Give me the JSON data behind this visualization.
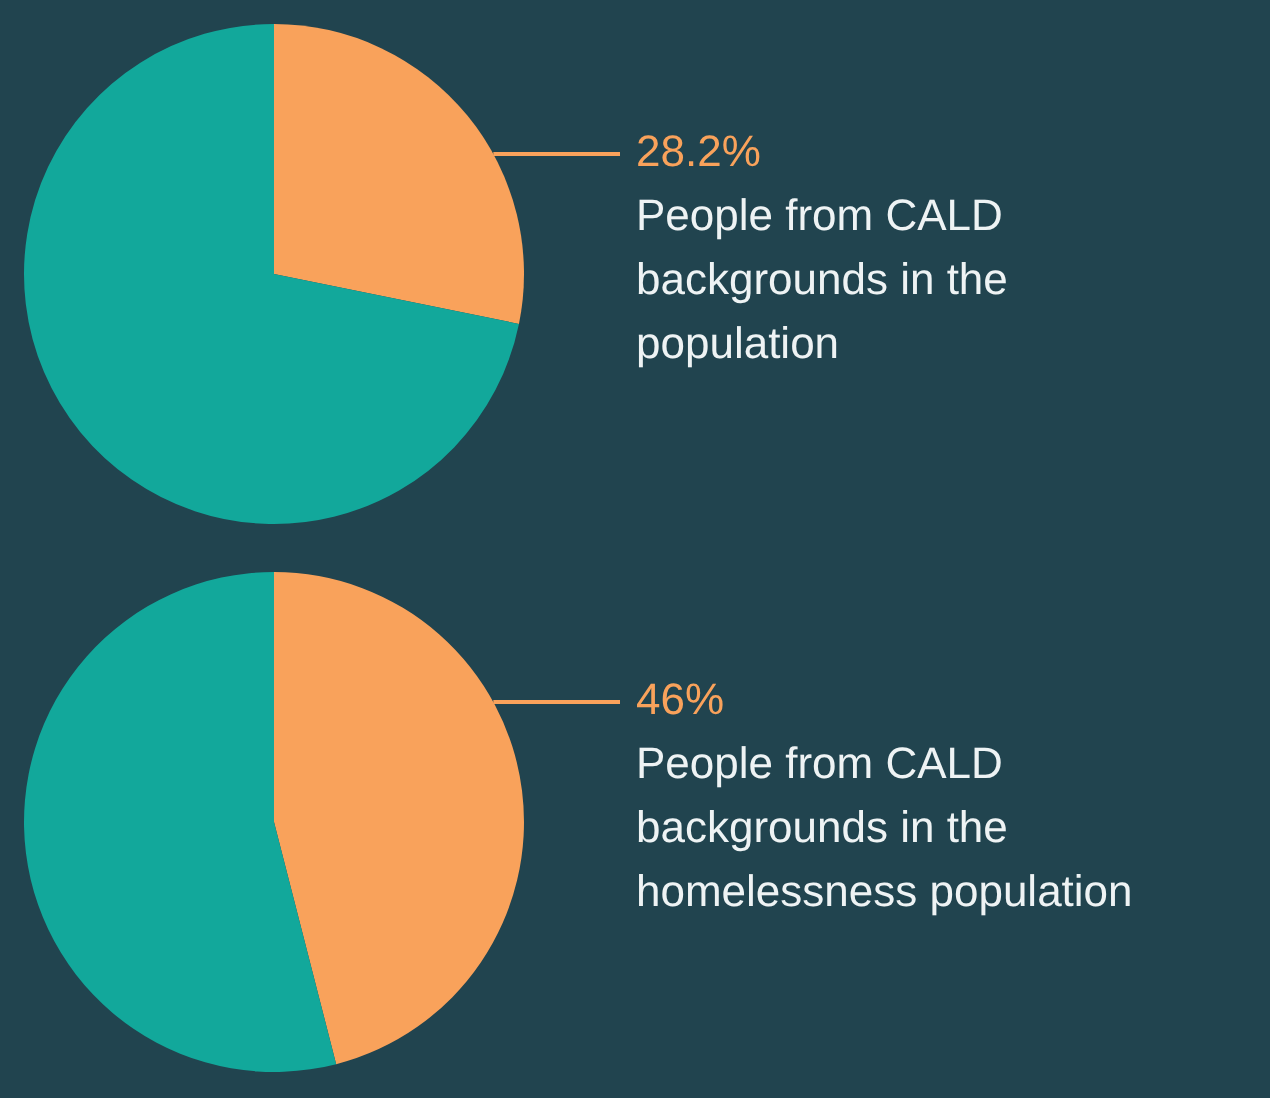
{
  "chart_data": [
    {
      "type": "pie",
      "categories": [
        "People from CALD backgrounds in the population",
        null
      ],
      "values": [
        28.2,
        71.8
      ],
      "colors": [
        "#f9a25b",
        "#12a89b"
      ],
      "value_labels": [
        "28.2%",
        null
      ]
    },
    {
      "type": "pie",
      "categories": [
        "People from CALD backgrounds in the homelessness population",
        null
      ],
      "values": [
        46,
        54
      ],
      "colors": [
        "#f9a25b",
        "#12a89b"
      ],
      "value_labels": [
        "46%",
        null
      ]
    }
  ]
}
